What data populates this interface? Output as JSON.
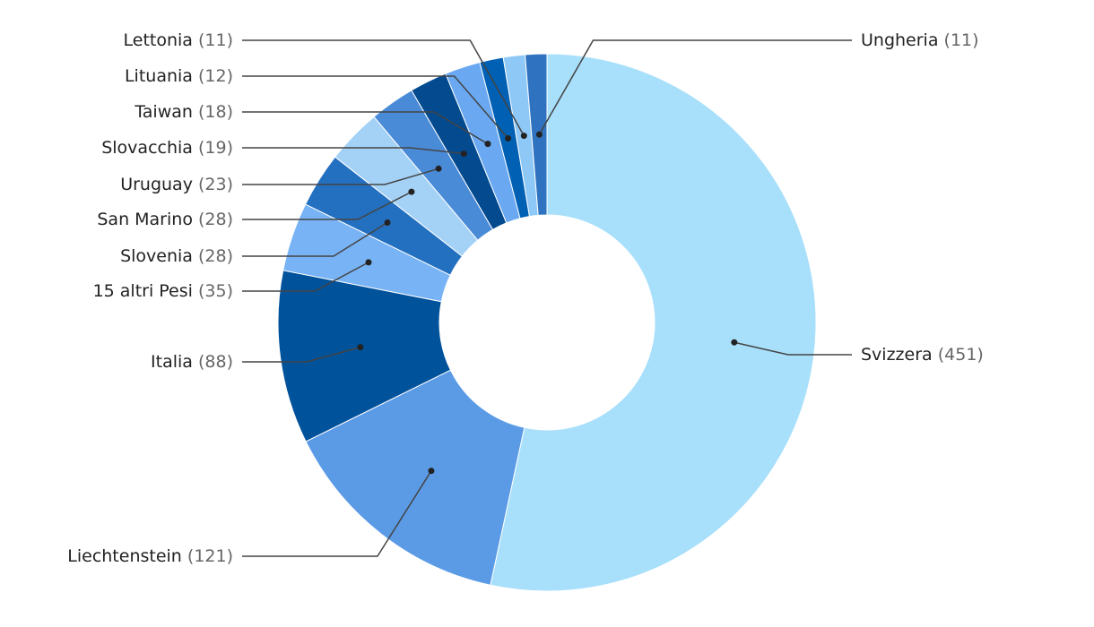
{
  "chart_data": {
    "type": "donut",
    "categories": [
      "Svizzera",
      "Liechtenstein",
      "Italia",
      "15 altri Pesi",
      "Slovenia",
      "San Marino",
      "Uruguay",
      "Slovacchia",
      "Taiwan",
      "Lituania",
      "Lettonia",
      "Ungheria"
    ],
    "values": [
      451,
      121,
      88,
      35,
      28,
      28,
      23,
      19,
      18,
      12,
      11,
      11
    ],
    "value_labels": [
      "(451)",
      "(121)",
      "(88)",
      "(35)",
      "(28)",
      "(28)",
      "(23)",
      "(19)",
      "(18)",
      "(12)",
      "(11)",
      "(11)"
    ],
    "colors": [
      "#a8e0fb",
      "#5b9be6",
      "#00529b",
      "#78b3f5",
      "#2470c0",
      "#a4d2f7",
      "#4a8bd8",
      "#034a8f",
      "#6aa9f2",
      "#0060b3",
      "#8ec8f6",
      "#2e72c0"
    ]
  }
}
